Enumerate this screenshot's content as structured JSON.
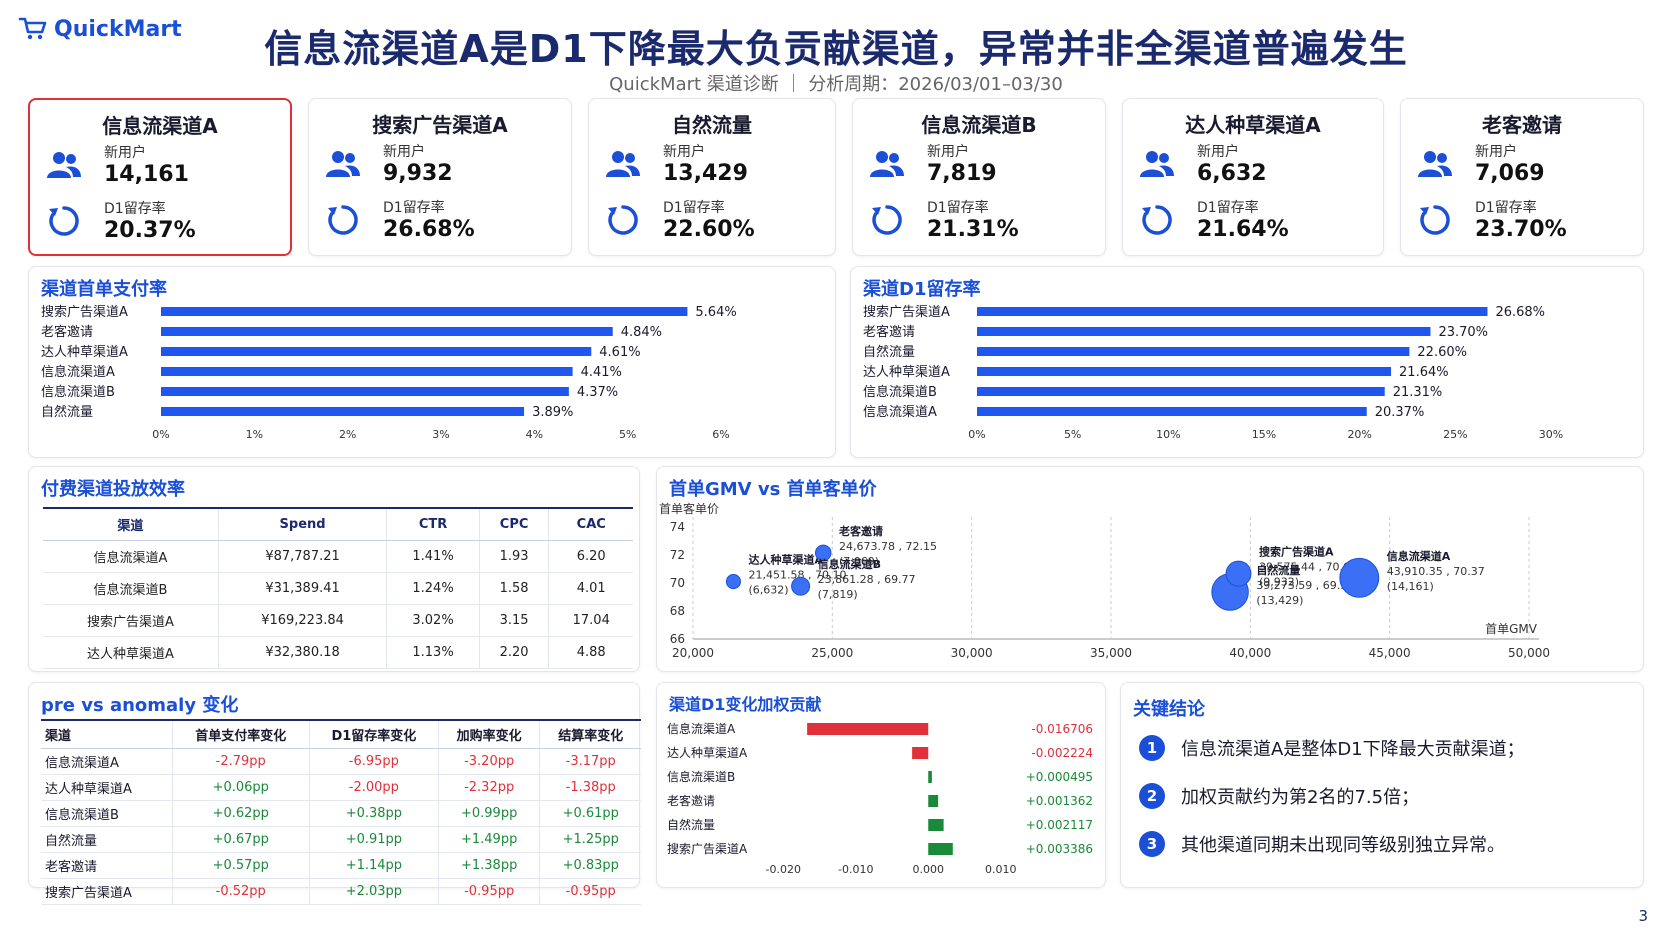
{
  "header": {
    "logo_text": "QuickMart",
    "title": "信息流渠道A是D1下降最大负贡献渠道，异常并非全渠道普遍发生",
    "subtitle": "QuickMart 渠道诊断 ｜ 分析周期：2026/03/01–03/30"
  },
  "kpis": [
    {
      "name": "信息流渠道A",
      "new_users_label": "新用户",
      "new_users": "14,161",
      "retention_label": "D1留存率",
      "retention": "20.37%",
      "highlight": true
    },
    {
      "name": "搜索广告渠道A",
      "new_users_label": "新用户",
      "new_users": "9,932",
      "retention_label": "D1留存率",
      "retention": "26.68%"
    },
    {
      "name": "自然流量",
      "new_users_label": "新用户",
      "new_users": "13,429",
      "retention_label": "D1留存率",
      "retention": "22.60%"
    },
    {
      "name": "信息流渠道B",
      "new_users_label": "新用户",
      "new_users": "7,819",
      "retention_label": "D1留存率",
      "retention": "21.31%"
    },
    {
      "name": "达人种草渠道A",
      "new_users_label": "新用户",
      "new_users": "6,632",
      "retention_label": "D1留存率",
      "retention": "21.64%"
    },
    {
      "name": "老客邀请",
      "new_users_label": "新用户",
      "new_users": "7,069",
      "retention_label": "D1留存率",
      "retention": "23.70%"
    }
  ],
  "colors": {
    "accent": "#1a4fd6",
    "bar": "#1f56f0",
    "negative": "#e0303a",
    "positive": "#1a8a3a",
    "bubble": "#3b6ff5"
  },
  "chart_data": [
    {
      "type": "bar",
      "orientation": "horizontal",
      "title": "渠道首单支付率",
      "categories": [
        "搜索广告渠道A",
        "老客邀请",
        "达人种草渠道A",
        "信息流渠道A",
        "信息流渠道B",
        "自然流量"
      ],
      "values": [
        5.64,
        4.84,
        4.61,
        4.41,
        4.37,
        3.89
      ],
      "labels": [
        "5.64%",
        "4.84%",
        "4.61%",
        "4.41%",
        "4.37%",
        "3.89%"
      ],
      "xlim": [
        0,
        6
      ],
      "ticks": [
        "0%",
        "1%",
        "2%",
        "3%",
        "4%",
        "5%",
        "6%"
      ]
    },
    {
      "type": "bar",
      "orientation": "horizontal",
      "title": "渠道D1留存率",
      "categories": [
        "搜索广告渠道A",
        "老客邀请",
        "自然流量",
        "达人种草渠道A",
        "信息流渠道B",
        "信息流渠道A"
      ],
      "values": [
        26.68,
        23.7,
        22.6,
        21.64,
        21.31,
        20.37
      ],
      "labels": [
        "26.68%",
        "23.70%",
        "22.60%",
        "21.64%",
        "21.31%",
        "20.37%"
      ],
      "xlim": [
        0,
        30
      ],
      "ticks": [
        "0%",
        "5%",
        "10%",
        "15%",
        "20%",
        "25%",
        "30%"
      ]
    },
    {
      "type": "table",
      "title": "付费渠道投放效率",
      "columns": [
        "渠道",
        "Spend",
        "CTR",
        "CPC",
        "CAC"
      ],
      "rows": [
        [
          "信息流渠道A",
          "¥87,787.21",
          "1.41%",
          "1.93",
          "6.20"
        ],
        [
          "信息流渠道B",
          "¥31,389.41",
          "1.24%",
          "1.58",
          "4.01"
        ],
        [
          "搜索广告渠道A",
          "¥169,223.84",
          "3.02%",
          "3.15",
          "17.04"
        ],
        [
          "达人种草渠道A",
          "¥32,380.18",
          "1.13%",
          "2.20",
          "4.88"
        ]
      ]
    },
    {
      "type": "scatter",
      "title": "首单GMV vs 首单客单价",
      "xlabel": "首单GMV",
      "ylabel": "首单客单价",
      "xlim": [
        20000,
        50000
      ],
      "ylim": [
        66,
        74
      ],
      "xticks": [
        "20,000",
        "25,000",
        "30,000",
        "35,000",
        "40,000",
        "45,000",
        "50,000"
      ],
      "yticks": [
        "66",
        "68",
        "70",
        "72",
        "74"
      ],
      "points": [
        {
          "name": "达人种草渠道A",
          "x": 21451.58,
          "y": 70.1,
          "size": 6632,
          "label": "21,451.58 , 70.10",
          "size_label": "(6,632)"
        },
        {
          "name": "老客邀请",
          "x": 24673.78,
          "y": 72.15,
          "size": 7069,
          "label": "24,673.78 , 72.15",
          "size_label": "(7,069)"
        },
        {
          "name": "信息流渠道B",
          "x": 23861.28,
          "y": 69.77,
          "size": 7819,
          "label": "23,861.28 , 69.77",
          "size_label": "(7,819)"
        },
        {
          "name": "自然流量",
          "x": 39273.59,
          "y": 69.36,
          "size": 13429,
          "label": "39,273.59 , 69.36",
          "size_label": "(13,429)"
        },
        {
          "name": "搜索广告渠道A",
          "x": 39575.44,
          "y": 70.67,
          "size": 9932,
          "label": "39,575.44 , 70.67",
          "size_label": "(9,932)"
        },
        {
          "name": "信息流渠道A",
          "x": 43910.35,
          "y": 70.37,
          "size": 14161,
          "label": "43,910.35 , 70.37",
          "size_label": "(14,161)"
        }
      ]
    },
    {
      "type": "table",
      "title": "pre vs anomaly 变化",
      "columns": [
        "渠道",
        "首单支付率变化",
        "D1留存率变化",
        "加购率变化",
        "结算率变化"
      ],
      "rows": [
        [
          "信息流渠道A",
          "-2.79pp",
          "-6.95pp",
          "-3.20pp",
          "-3.17pp"
        ],
        [
          "达人种草渠道A",
          "+0.06pp",
          "-2.00pp",
          "-2.32pp",
          "-1.38pp"
        ],
        [
          "信息流渠道B",
          "+0.62pp",
          "+0.38pp",
          "+0.99pp",
          "+0.61pp"
        ],
        [
          "自然流量",
          "+0.67pp",
          "+0.91pp",
          "+1.49pp",
          "+1.25pp"
        ],
        [
          "老客邀请",
          "+0.57pp",
          "+1.14pp",
          "+1.38pp",
          "+0.83pp"
        ],
        [
          "搜索广告渠道A",
          "-0.52pp",
          "+2.03pp",
          "-0.95pp",
          "-0.95pp"
        ]
      ]
    },
    {
      "type": "bar",
      "orientation": "horizontal-diverging",
      "title": "渠道D1变化加权贡献",
      "categories": [
        "信息流渠道A",
        "达人种草渠道A",
        "信息流渠道B",
        "老客邀请",
        "自然流量",
        "搜索广告渠道A"
      ],
      "values": [
        -0.016706,
        -0.002224,
        0.000495,
        0.001362,
        0.002117,
        0.003386
      ],
      "labels": [
        "-0.016706",
        "-0.002224",
        "+0.000495",
        "+0.001362",
        "+0.002117",
        "+0.003386"
      ],
      "xlim": [
        -0.025,
        0.015
      ],
      "ticks": [
        -0.02,
        -0.01,
        0.0,
        0.01
      ],
      "tick_labels": [
        "-0.020",
        "-0.010",
        "0.000",
        "0.010"
      ]
    }
  ],
  "conclusions": {
    "title": "关键结论",
    "items": [
      {
        "num": "1",
        "text": "信息流渠道A是整体D1下降最大贡献渠道；"
      },
      {
        "num": "2",
        "text": "加权贡献约为第2名的7.5倍；"
      },
      {
        "num": "3",
        "text": "其他渠道同期未出现同等级别独立异常。"
      }
    ]
  },
  "page_number": "3"
}
